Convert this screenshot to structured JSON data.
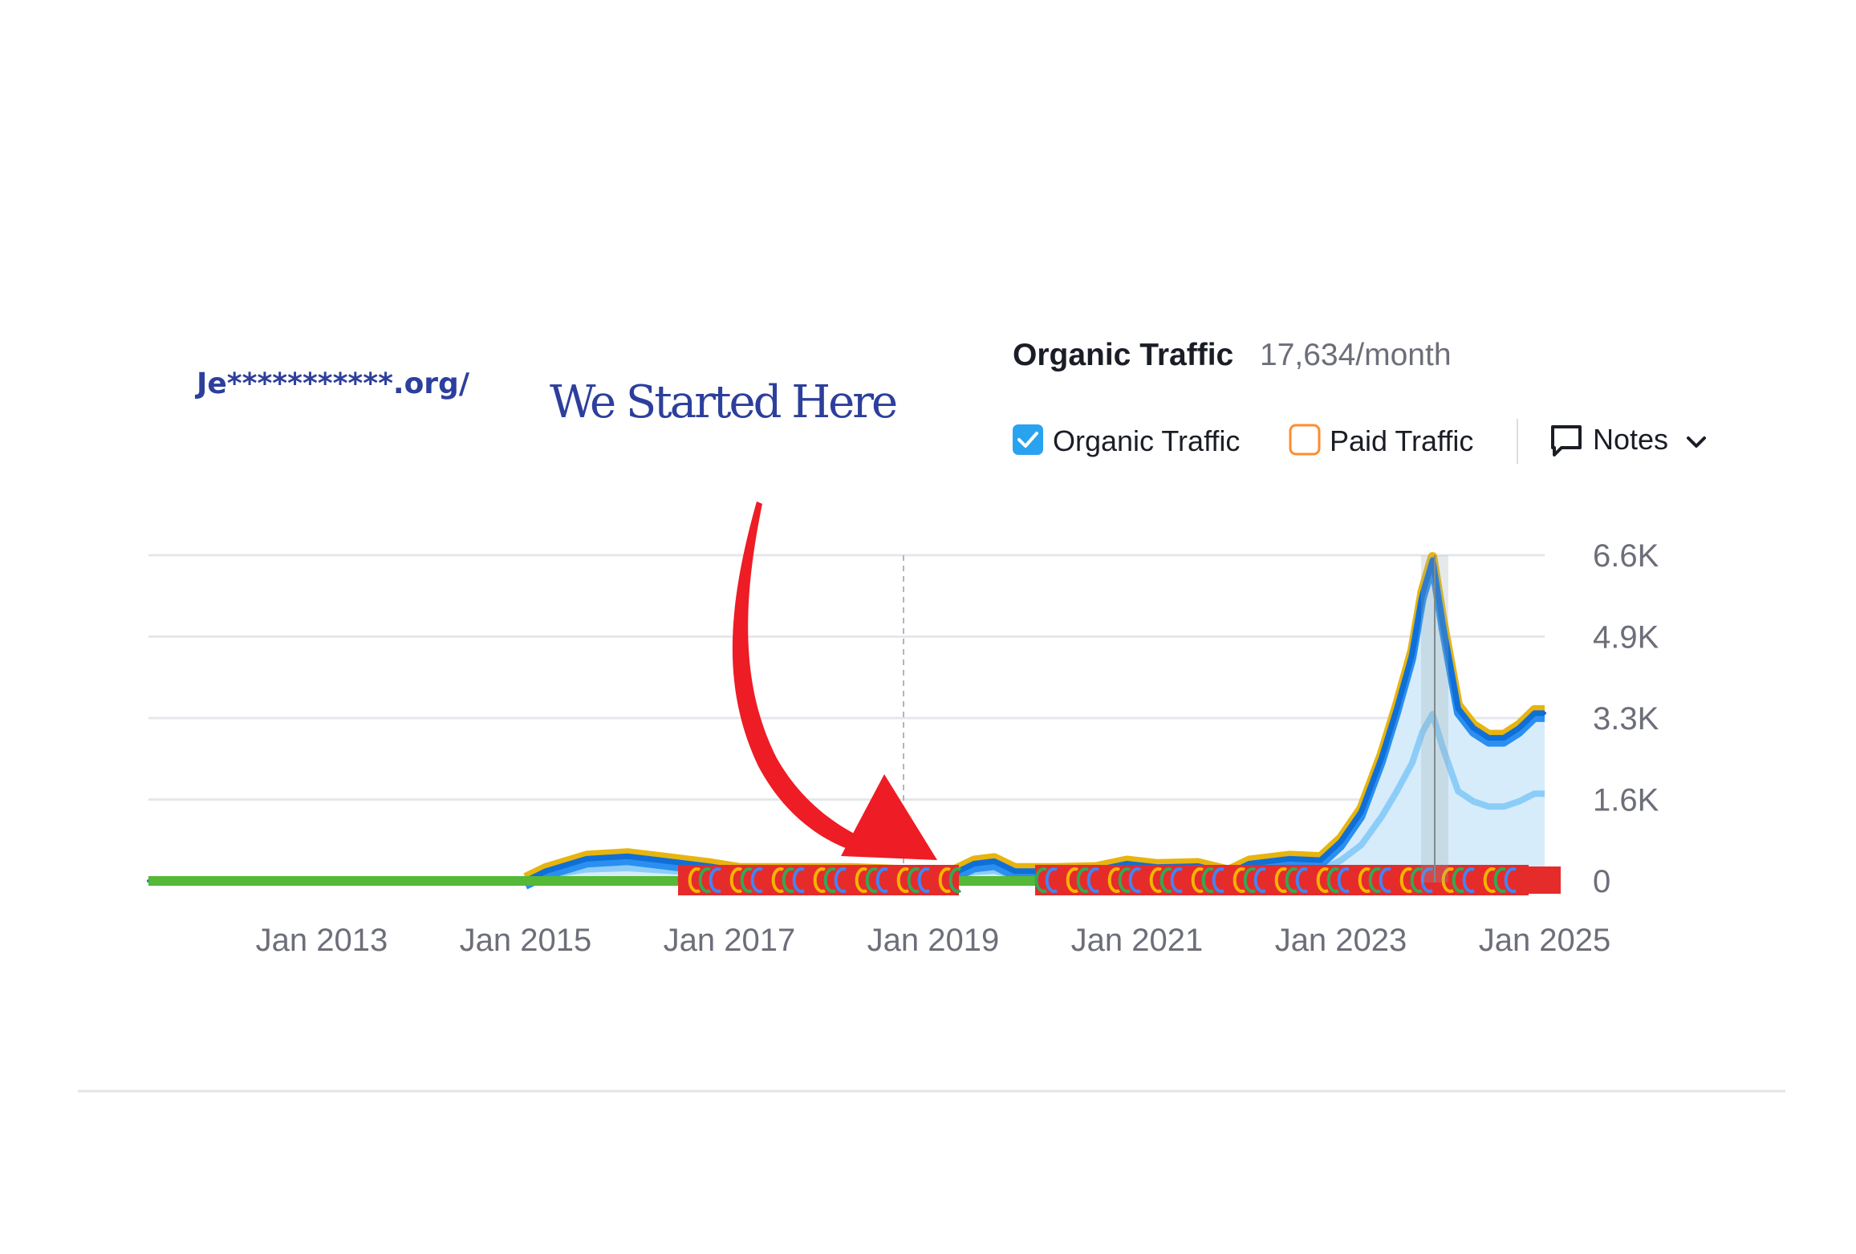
{
  "site": {
    "domain": "Je***********.org/"
  },
  "annotation": {
    "text": "We Started Here",
    "arrow_color": "#ee1c25"
  },
  "header": {
    "title": "Organic Traffic",
    "value": "17,634/month"
  },
  "legend": {
    "organic": {
      "label": "Organic Traffic",
      "checked": true,
      "color": "#29a3f0"
    },
    "paid": {
      "label": "Paid Traffic",
      "checked": false,
      "color": "#ff8c2e"
    },
    "notes": {
      "label": "Notes",
      "icon": "comment-icon",
      "chevron": "chevron-down-icon"
    }
  },
  "colors": {
    "grid": "#e6e7ec",
    "organic_fill": "#d6ecfb",
    "organic_dark": "#0f6fd6",
    "organic_mid": "#2a8ff0",
    "organic_light": "#8ccdf8",
    "gold": "#e8b40e",
    "baseline_green": "#55b836",
    "google_red": "#e62b2b",
    "google_yellow": "#f4b400",
    "google_green": "#34a853",
    "google_blue": "#4285f4"
  },
  "chart_data": {
    "type": "area",
    "title": "Organic Traffic",
    "xlabel": "",
    "ylabel": "",
    "x_ticks": [
      "Jan 2013",
      "Jan 2015",
      "Jan 2017",
      "Jan 2019",
      "Jan 2021",
      "Jan 2023",
      "Jan 2025"
    ],
    "y_ticks": [
      "6.6K",
      "4.9K",
      "3.3K",
      "1.6K",
      "0"
    ],
    "ylim": [
      0,
      6600
    ],
    "xlim": [
      2011.3,
      2025.0
    ],
    "grid": true,
    "series": [
      {
        "name": "Organic Traffic",
        "x": [
          2011.3,
          2015.0,
          2015.2,
          2015.6,
          2016.0,
          2016.4,
          2016.8,
          2017.1,
          2017.6,
          2018.2,
          2018.8,
          2019.2,
          2019.4,
          2019.6,
          2019.8,
          2020.2,
          2020.6,
          2020.9,
          2021.2,
          2021.6,
          2021.9,
          2022.1,
          2022.5,
          2022.8,
          2023.0,
          2023.2,
          2023.4,
          2023.55,
          2023.7,
          2023.8,
          2023.9,
          2024.0,
          2024.15,
          2024.3,
          2024.45,
          2024.6,
          2024.75,
          2024.9,
          2025.0
        ],
        "values": [
          0,
          0,
          200,
          450,
          500,
          400,
          300,
          200,
          200,
          200,
          150,
          150,
          350,
          400,
          200,
          200,
          220,
          350,
          280,
          300,
          150,
          350,
          450,
          420,
          800,
          1400,
          2500,
          3500,
          4600,
          5800,
          6500,
          5200,
          3500,
          3100,
          2900,
          2900,
          3100,
          3400,
          3400
        ]
      }
    ]
  }
}
